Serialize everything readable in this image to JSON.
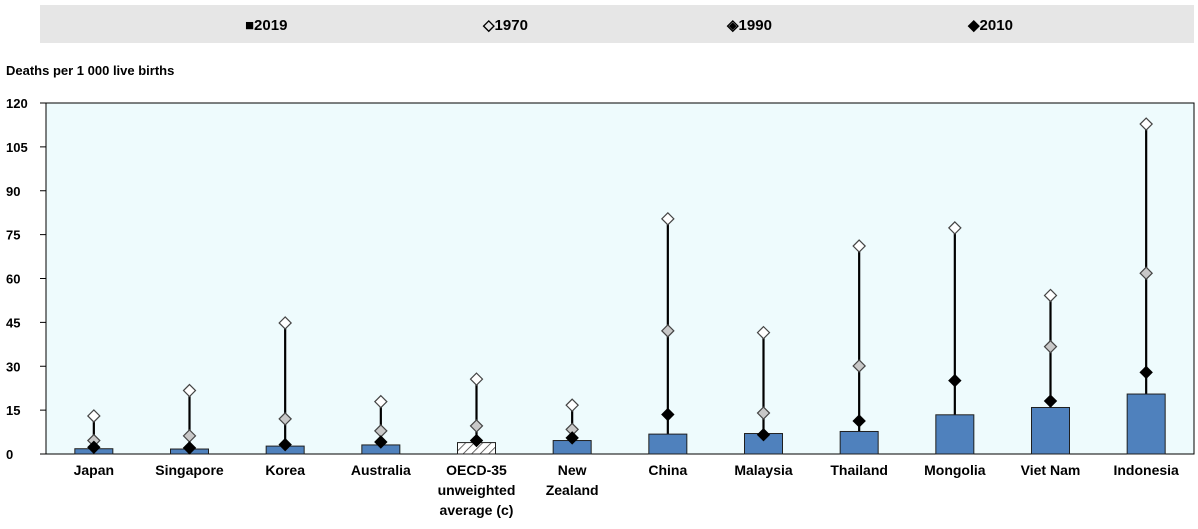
{
  "chart_data": {
    "type": "bar",
    "ylabel": "Deaths per 1 000 live births",
    "ylim": [
      0,
      120
    ],
    "yticks": [
      0,
      15,
      30,
      45,
      60,
      75,
      90,
      105,
      120
    ],
    "categories": [
      [
        "Japan"
      ],
      [
        "Singapore"
      ],
      [
        "Korea"
      ],
      [
        "Australia"
      ],
      [
        "OECD-35",
        "unweighted",
        "average (c)"
      ],
      [
        "New",
        "Zealand"
      ],
      [
        "China"
      ],
      [
        "Malaysia"
      ],
      [
        "Thailand"
      ],
      [
        "Mongolia"
      ],
      [
        "Viet Nam"
      ],
      [
        "Indonesia"
      ]
    ],
    "highlight_category_index": 4,
    "legend": [
      {
        "symbol": "■",
        "label": "2019"
      },
      {
        "symbol": "◇",
        "label": "1970"
      },
      {
        "symbol": "◈",
        "label": "1990"
      },
      {
        "symbol": "◆",
        "label": "2010"
      }
    ],
    "series": [
      {
        "name": "2019",
        "kind": "bar",
        "values": [
          1.8,
          1.7,
          2.7,
          3.1,
          3.9,
          4.6,
          6.8,
          7.0,
          7.7,
          13.4,
          15.9,
          20.5
        ]
      },
      {
        "name": "1970",
        "kind": "marker",
        "values": [
          13.0,
          21.7,
          44.8,
          17.9,
          25.6,
          16.7,
          80.4,
          41.5,
          71.1,
          77.3,
          54.2,
          112.8
        ]
      },
      {
        "name": "1990",
        "kind": "marker",
        "values": [
          4.6,
          6.2,
          12.0,
          7.9,
          9.6,
          8.4,
          42.1,
          14.0,
          30.1,
          0,
          36.7,
          61.8
        ]
      },
      {
        "name": "2010",
        "kind": "marker",
        "values": [
          2.3,
          2.1,
          3.2,
          4.1,
          4.6,
          5.5,
          13.5,
          6.6,
          11.3,
          25.1,
          18.1,
          27.9
        ]
      }
    ],
    "colors": {
      "bar": "#4f81bd",
      "bar_border": "#1f1f1f",
      "plot_bg": "#eefbfd",
      "legend_bg": "#e6e6e6",
      "oecd_hatch": "#ffffff"
    },
    "grid": false,
    "legend_position": "top"
  }
}
